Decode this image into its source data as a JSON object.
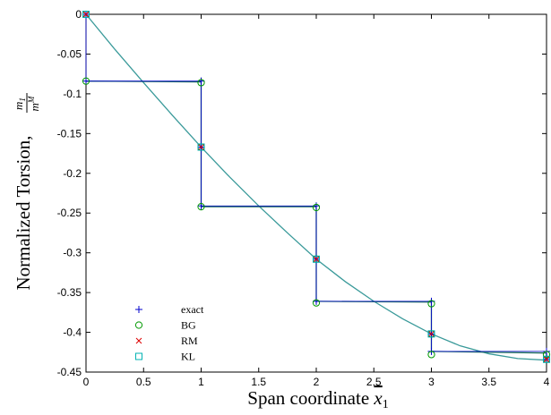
{
  "chart_data": {
    "type": "line",
    "xlabel": "Span coordinate x̄1",
    "ylabel": "Normalized Torsion, m1/mM",
    "xlim": [
      0,
      4
    ],
    "ylim": [
      -0.45,
      0
    ],
    "xticks": [
      0,
      0.5,
      1,
      1.5,
      2,
      2.5,
      3,
      3.5,
      4
    ],
    "xtick_labels": [
      "0",
      "0.5",
      "1",
      "1.5",
      "2",
      "2.5",
      "3",
      "3.5",
      "4"
    ],
    "yticks": [
      0,
      -0.05,
      -0.1,
      -0.15,
      -0.2,
      -0.25,
      -0.3,
      -0.35,
      -0.4,
      -0.45
    ],
    "ytick_labels": [
      "0",
      "-0.05",
      "-0.1",
      "-0.15",
      "-0.2",
      "-0.25",
      "-0.3",
      "-0.35",
      "-0.4",
      "-0.45"
    ],
    "grid": false,
    "legend_position": "lower-left",
    "series": [
      {
        "name": "exact",
        "marker": "plus",
        "color": "#0000cc",
        "x": [
          0,
          0,
          1,
          1,
          1,
          2,
          2,
          2,
          3,
          3,
          3,
          4,
          4
        ],
        "y": [
          0,
          -0.084,
          -0.084,
          -0.167,
          -0.241,
          -0.241,
          -0.308,
          -0.361,
          -0.361,
          -0.402,
          -0.424,
          -0.424,
          -0.434
        ]
      },
      {
        "name": "BG",
        "marker": "circle",
        "color": "#009900",
        "x": [
          0,
          0,
          1,
          1,
          1,
          2,
          2,
          2,
          3,
          3,
          3,
          4,
          4
        ],
        "y": [
          0,
          -0.084,
          -0.086,
          -0.167,
          -0.242,
          -0.243,
          -0.308,
          -0.363,
          -0.364,
          -0.402,
          -0.428,
          -0.428,
          -0.434
        ]
      },
      {
        "name": "RM",
        "marker": "x",
        "color": "#dd0000",
        "x": [
          0,
          1,
          2,
          3,
          4
        ],
        "y": [
          0,
          -0.167,
          -0.308,
          -0.402,
          -0.434
        ]
      },
      {
        "name": "KL",
        "marker": "square",
        "color": "#00b3b3",
        "x": [
          0,
          1,
          2,
          3,
          4
        ],
        "y": [
          0,
          -0.167,
          -0.308,
          -0.402,
          -0.434
        ]
      }
    ],
    "curve": {
      "color": "#3a9a9a",
      "x": [
        0,
        0.25,
        0.5,
        0.75,
        1,
        1.25,
        1.5,
        1.75,
        2,
        2.25,
        2.5,
        2.75,
        3,
        3.25,
        3.5,
        3.75,
        4
      ],
      "y": [
        0,
        -0.044,
        -0.086,
        -0.127,
        -0.167,
        -0.205,
        -0.241,
        -0.275,
        -0.308,
        -0.336,
        -0.361,
        -0.383,
        -0.402,
        -0.417,
        -0.427,
        -0.433,
        -0.435
      ]
    },
    "step_segments": {
      "color": "#1f6f5f",
      "paths": [
        {
          "x": [
            0,
            1
          ],
          "y": [
            -0.084,
            -0.085
          ]
        },
        {
          "x": [
            1,
            1
          ],
          "y": [
            -0.085,
            -0.242
          ]
        },
        {
          "x": [
            1,
            2
          ],
          "y": [
            -0.242,
            -0.242
          ]
        },
        {
          "x": [
            2,
            2
          ],
          "y": [
            -0.242,
            -0.362
          ]
        },
        {
          "x": [
            2,
            3
          ],
          "y": [
            -0.361,
            -0.362
          ]
        },
        {
          "x": [
            3,
            3
          ],
          "y": [
            -0.362,
            -0.426
          ]
        },
        {
          "x": [
            3,
            4
          ],
          "y": [
            -0.424,
            -0.426
          ]
        },
        {
          "x": [
            4,
            4
          ],
          "y": [
            -0.426,
            -0.434
          ]
        }
      ]
    }
  }
}
